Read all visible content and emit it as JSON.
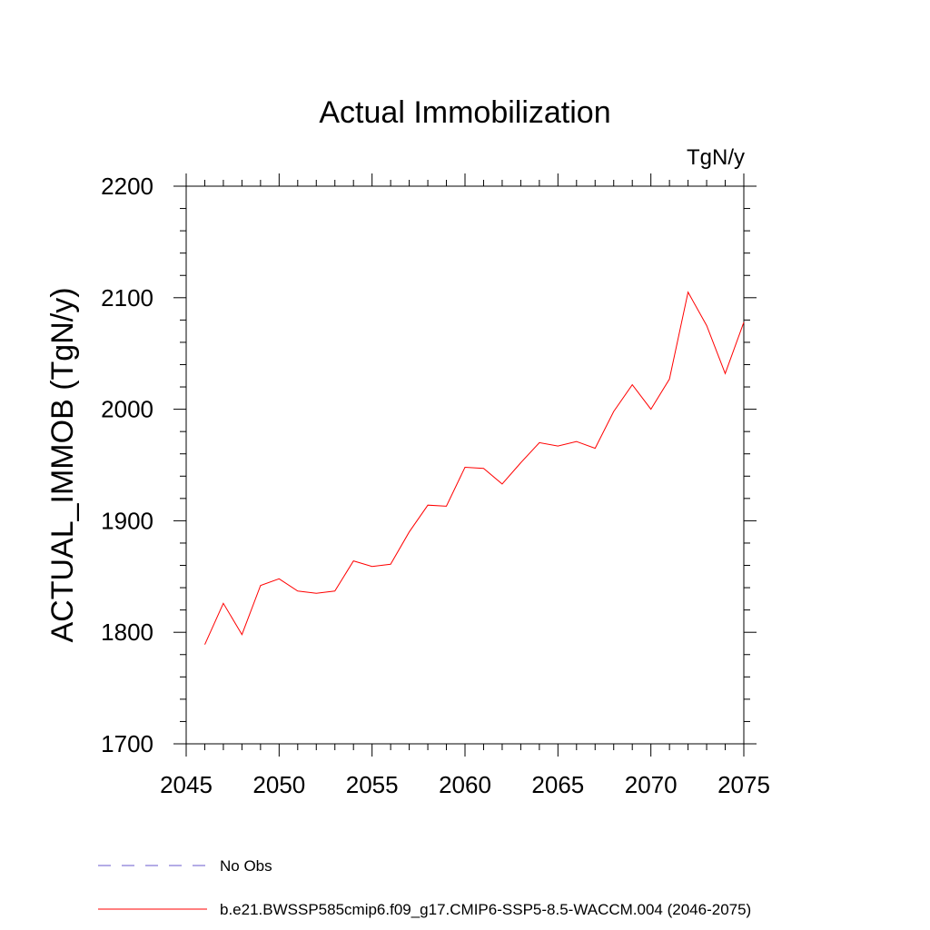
{
  "chart_data": {
    "type": "line",
    "title": "Actual Immobilization",
    "units_label": "TgN/y",
    "ylabel": "ACTUAL_IMMOB  (TgN/y)",
    "xlabel": "",
    "xlim": [
      2045,
      2075
    ],
    "ylim": [
      1700,
      2200
    ],
    "x_ticks": [
      2045,
      2050,
      2055,
      2060,
      2065,
      2070,
      2075
    ],
    "y_ticks": [
      1700,
      1800,
      1900,
      2000,
      2100,
      2200
    ],
    "grid": false,
    "x": [
      2046,
      2047,
      2048,
      2049,
      2050,
      2051,
      2052,
      2053,
      2054,
      2055,
      2056,
      2057,
      2058,
      2059,
      2060,
      2061,
      2062,
      2063,
      2064,
      2065,
      2066,
      2067,
      2068,
      2069,
      2070,
      2071,
      2072,
      2073,
      2074,
      2075
    ],
    "series": [
      {
        "name": "b.e21.BWSSP585cmip6.f09_g17.CMIP6-SSP5-8.5-WACCM.004 (2046-2075)",
        "color": "#ff0000",
        "dash": "solid",
        "values": [
          1789,
          1826,
          1798,
          1842,
          1848,
          1837,
          1835,
          1837,
          1864,
          1859,
          1861,
          1890,
          1914,
          1913,
          1948,
          1947,
          1933,
          1952,
          1970,
          1967,
          1971,
          1965,
          1998,
          2022,
          2000,
          2027,
          2105,
          2075,
          2032,
          2078
        ]
      }
    ],
    "legend": [
      {
        "label": "No Obs",
        "color": "#6a5acd",
        "dash": "dashed"
      },
      {
        "label": "b.e21.BWSSP585cmip6.f09_g17.CMIP6-SSP5-8.5-WACCM.004 (2046-2075)",
        "color": "#ff0000",
        "dash": "solid"
      }
    ],
    "legend_position": "bottom"
  }
}
